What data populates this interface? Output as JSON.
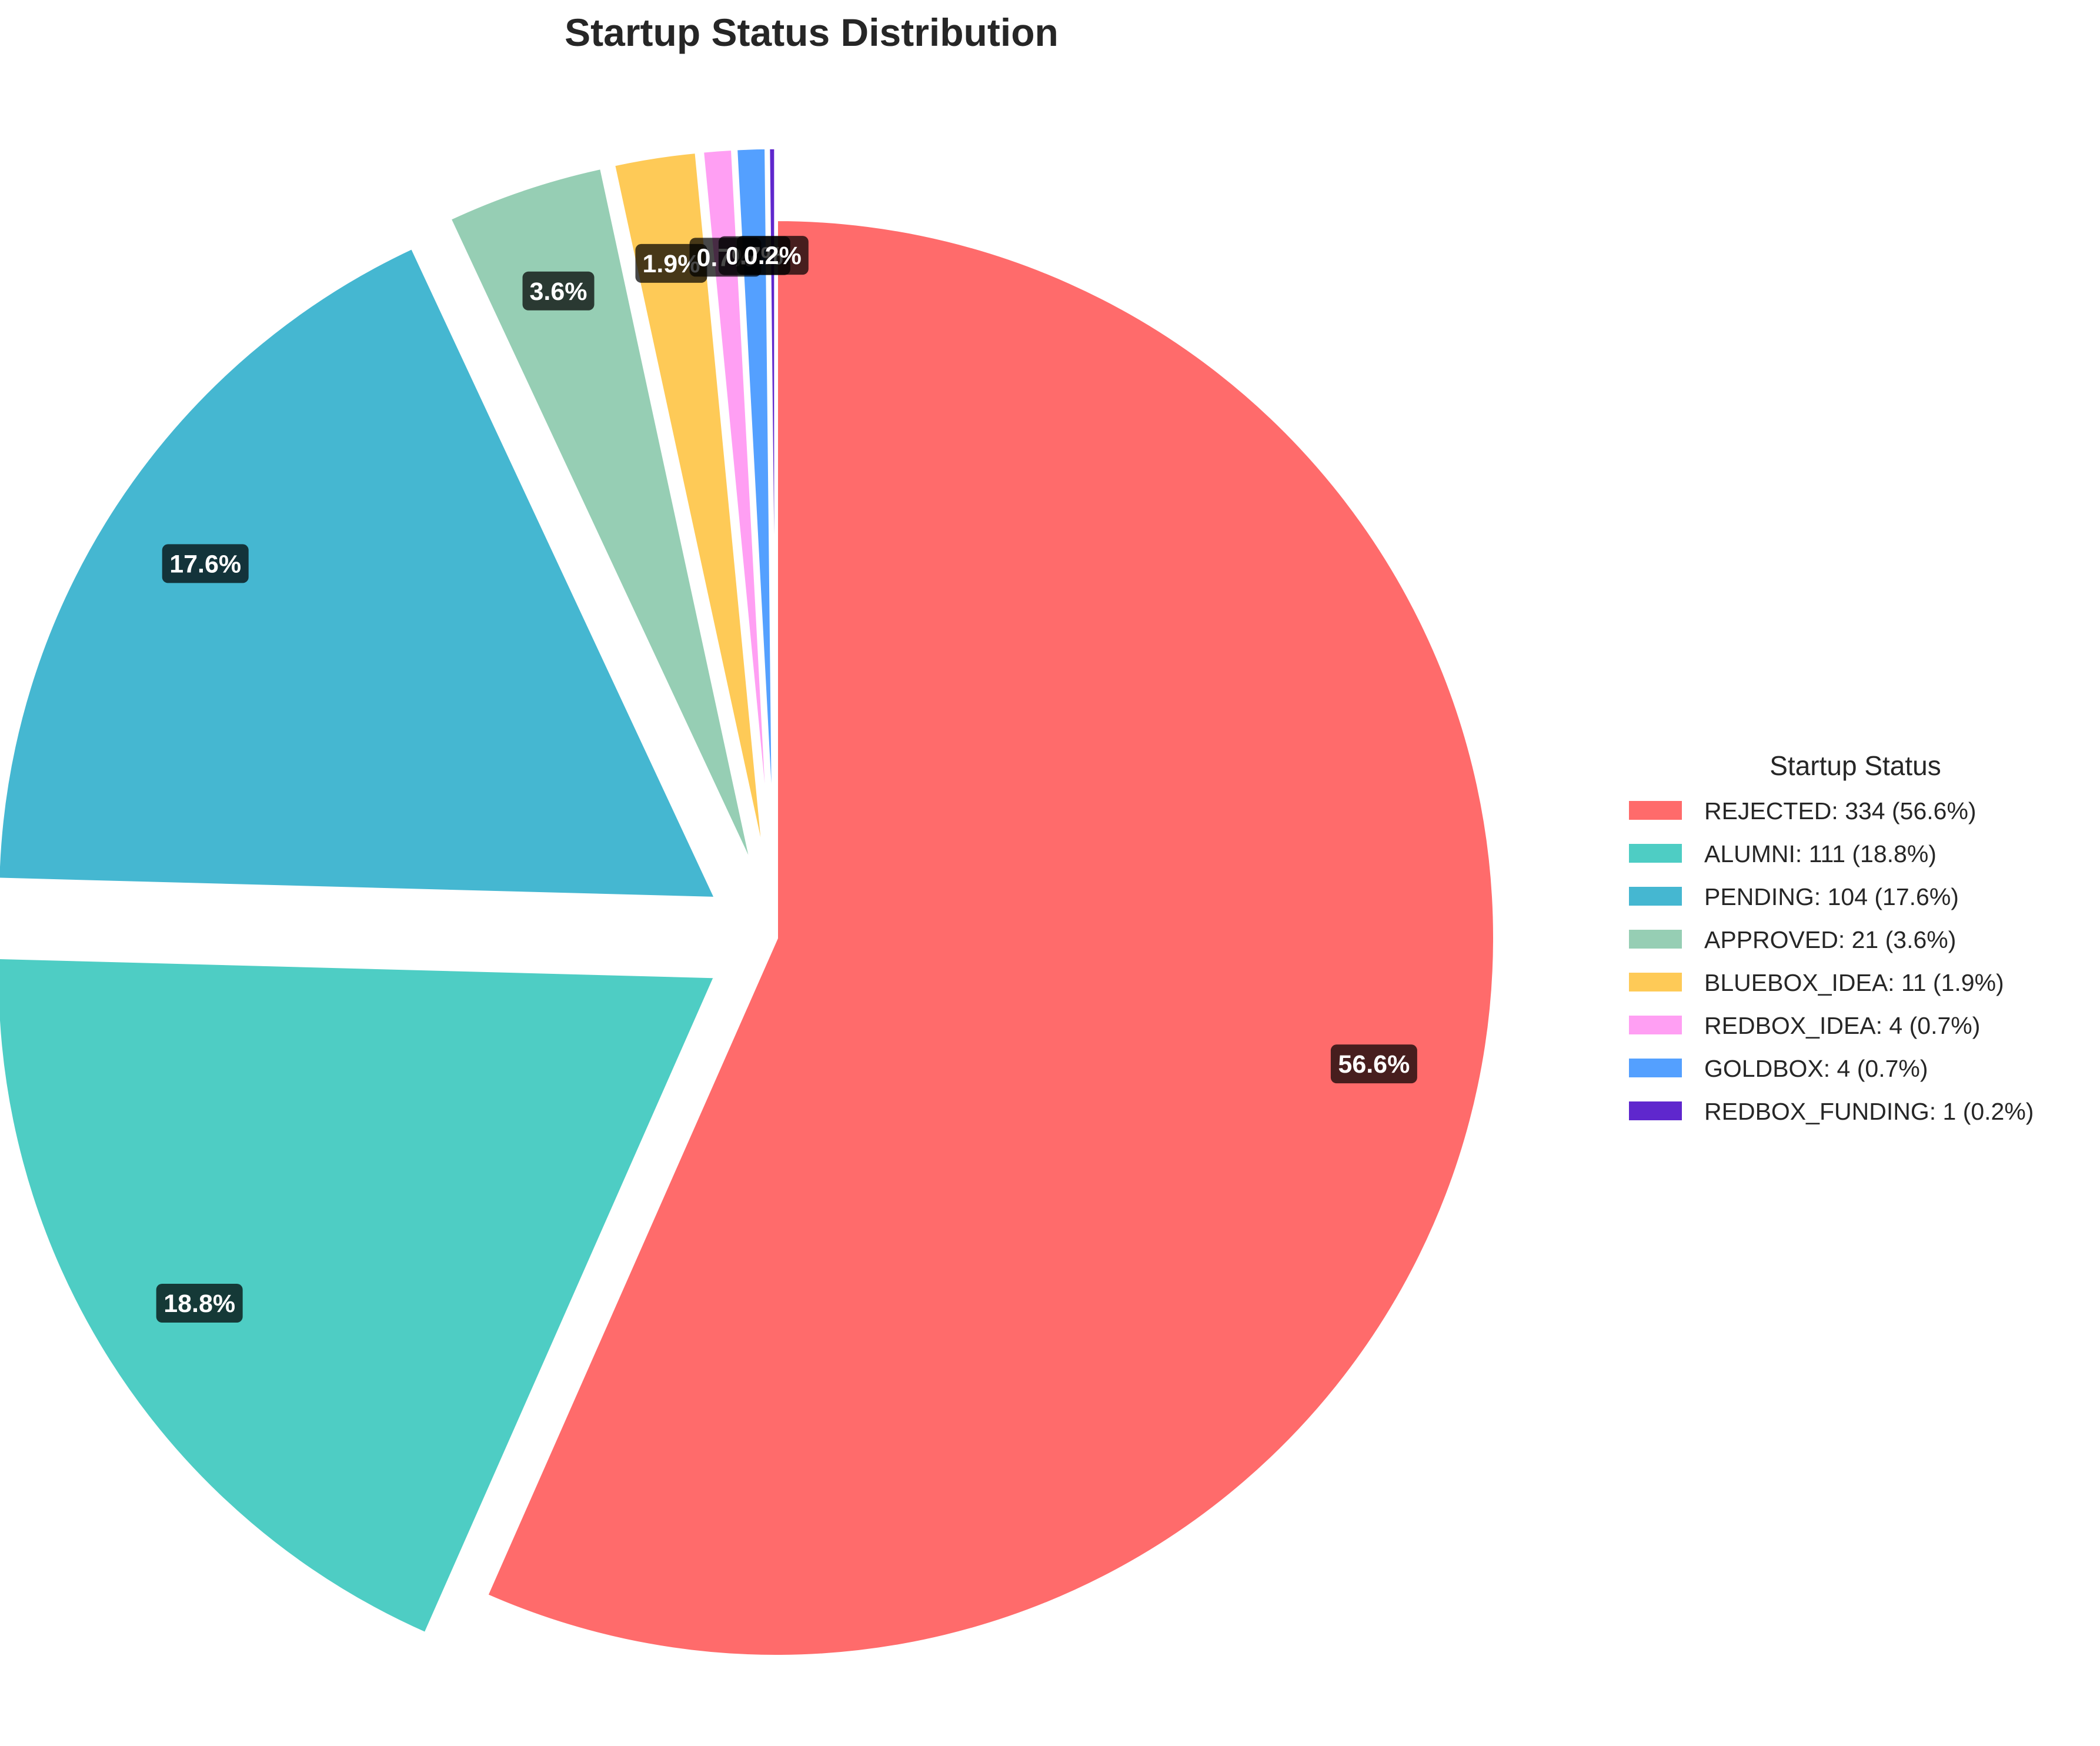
{
  "chart_data": {
    "type": "pie",
    "title": "Startup Status Distribution",
    "legend_title": "Startup Status",
    "legend_position": "right",
    "start_angle_deg": 90,
    "direction": "clockwise",
    "slices": [
      {
        "label": "REJECTED",
        "value": 334,
        "pct_label": "56.6%",
        "legend": "REJECTED: 334 (56.6%)",
        "color": "#FF6B6B",
        "explode": 0
      },
      {
        "label": "ALUMNI",
        "value": 111,
        "pct_label": "18.8%",
        "legend": "ALUMNI: 111 (18.8%)",
        "color": "#4ECDC4",
        "explode": 0.1
      },
      {
        "label": "PENDING",
        "value": 104,
        "pct_label": "17.6%",
        "legend": "PENDING: 104 (17.6%)",
        "color": "#45B7D1",
        "explode": 0.1
      },
      {
        "label": "APPROVED",
        "value": 21,
        "pct_label": "3.6%",
        "legend": "APPROVED: 21 (3.6%)",
        "color": "#96CEB4",
        "explode": 0.1
      },
      {
        "label": "BLUEBOX_IDEA",
        "value": 11,
        "pct_label": "1.9%",
        "legend": "BLUEBOX_IDEA: 11 (1.9%)",
        "color": "#FECA57",
        "explode": 0.1
      },
      {
        "label": "REDBOX_IDEA",
        "value": 4,
        "pct_label": "0.7%",
        "legend": "REDBOX_IDEA: 4 (0.7%)",
        "color": "#FF9FF3",
        "explode": 0.1
      },
      {
        "label": "GOLDBOX",
        "value": 4,
        "pct_label": "0.7%",
        "legend": "GOLDBOX: 4 (0.7%)",
        "color": "#54A0FF",
        "explode": 0.1
      },
      {
        "label": "REDBOX_FUNDING",
        "value": 1,
        "pct_label": "0.2%",
        "legend": "REDBOX_FUNDING: 1 (0.2%)",
        "color": "#5F27CD",
        "explode": 0.1
      }
    ]
  }
}
